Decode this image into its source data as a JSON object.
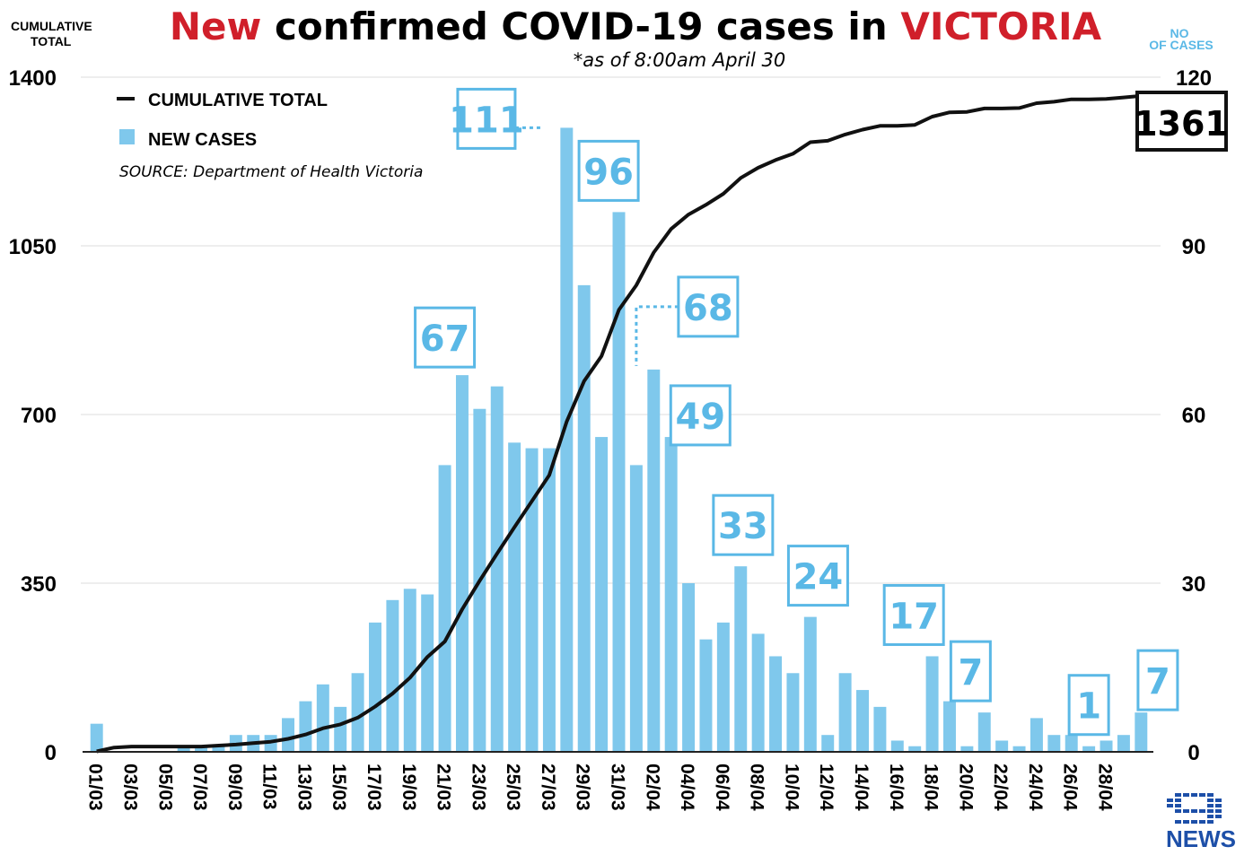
{
  "header": {
    "title_prefix": "New",
    "title_middle": " confirmed COVID-19 cases in ",
    "title_suffix": "VICTORIA",
    "subtitle": "*as of 8:00am April 30",
    "left_axis_label_line1": "CUMULATIVE",
    "left_axis_label_line2": "TOTAL",
    "right_axis_label_line1": "NO",
    "right_axis_label_line2": "OF CASES"
  },
  "legend": {
    "cumulative_label": "CUMULATIVE TOTAL",
    "new_cases_label": "NEW CASES",
    "source": "SOURCE: Department of Health Victoria"
  },
  "final_total_label": "1361",
  "brand": {
    "name": "NEWS",
    "mark": "9"
  },
  "colors": {
    "bar": "#7fc8ec",
    "callout": "#5ab8e6",
    "line": "#111111",
    "red": "#d01f2a",
    "grid": "#e8e8e8",
    "brand_blue": "#1d4fa8"
  },
  "chart_data": {
    "type": "bar",
    "x_tick_labels": [
      "01/03",
      "03/03",
      "05/03",
      "07/03",
      "09/03",
      "11/03",
      "13/03",
      "15/03",
      "17/03",
      "19/03",
      "21/03",
      "23/03",
      "25/03",
      "27/03",
      "29/03",
      "31/03",
      "02/04",
      "04/04",
      "06/04",
      "08/04",
      "10/04",
      "12/04",
      "14/04",
      "16/04",
      "18/04",
      "20/04",
      "22/04",
      "24/04",
      "26/04",
      "28/04"
    ],
    "series": [
      {
        "name": "NEW CASES",
        "axis": "right",
        "values": [
          5,
          0,
          0,
          0,
          0,
          1,
          1,
          1,
          3,
          3,
          3,
          6,
          9,
          12,
          8,
          14,
          23,
          27,
          29,
          28,
          51,
          67,
          61,
          65,
          55,
          54,
          54,
          111,
          83,
          56,
          96,
          51,
          68,
          56,
          30,
          20,
          23,
          33,
          21,
          17,
          14,
          24,
          3,
          14,
          11,
          8,
          2,
          1,
          17,
          9,
          1,
          7,
          2,
          1,
          6,
          3,
          3,
          1,
          2,
          3,
          7
        ],
        "labelled": [
          {
            "date": "21/03",
            "value": 67
          },
          {
            "date": "27/03",
            "value": 111
          },
          {
            "date": "30/03",
            "value": 96
          },
          {
            "date": "01/04",
            "value": 68
          },
          {
            "date": "02/04",
            "value": 49
          },
          {
            "date": "06/04",
            "value": 33
          },
          {
            "date": "10/04",
            "value": 24
          },
          {
            "date": "17/04",
            "value": 17
          },
          {
            "date": "20/04",
            "value": 7
          },
          {
            "date": "27/04",
            "value": 1
          },
          {
            "date": "29/04",
            "value": 7
          }
        ]
      },
      {
        "name": "CUMULATIVE TOTAL",
        "axis": "left",
        "values": [
          1,
          9,
          11,
          11,
          11,
          11,
          11,
          13,
          15,
          18,
          21,
          27,
          36,
          49,
          57,
          71,
          94,
          121,
          154,
          197,
          229,
          296,
          355,
          411,
          466,
          520,
          574,
          685,
          769,
          821,
          917,
          968,
          1036,
          1085,
          1115,
          1135,
          1158,
          1191,
          1212,
          1228,
          1241,
          1265,
          1268,
          1281,
          1291,
          1299,
          1299,
          1301,
          1318,
          1327,
          1328,
          1335,
          1335,
          1336,
          1346,
          1349,
          1354,
          1354,
          1355,
          1358,
          1361
        ]
      }
    ],
    "y_left": {
      "lim": [
        0,
        1400
      ],
      "ticks": [
        "0",
        "350",
        "700",
        "1050",
        "1400"
      ]
    },
    "y_right": {
      "lim": [
        0,
        120
      ],
      "ticks": [
        "0",
        "30",
        "60",
        "90",
        "120"
      ]
    },
    "grid": true,
    "legend_position": "top-left"
  }
}
